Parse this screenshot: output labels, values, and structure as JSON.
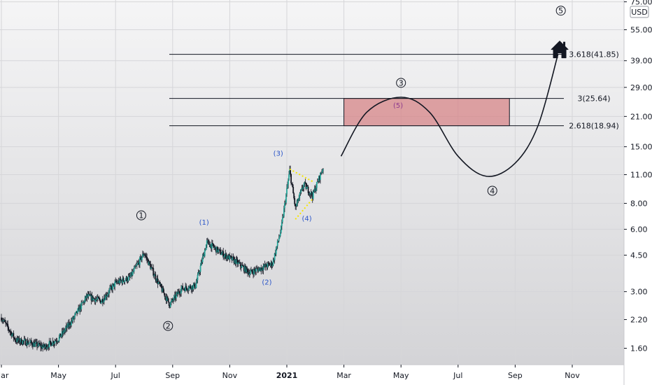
{
  "chart_data": {
    "type": "candlestick",
    "currency": "USD",
    "price_scale": "log",
    "y_ticks": [
      "75.00",
      "55.00",
      "39.00",
      "29.00",
      "21.00",
      "15.00",
      "11.00",
      "8.00",
      "6.00",
      "4.50",
      "3.00",
      "2.20",
      "1.60"
    ],
    "x_ticks": [
      "Mar",
      "May",
      "Jul",
      "Sep",
      "Nov",
      "2021",
      "Mar",
      "May",
      "Jul",
      "Sep",
      "Nov"
    ],
    "fib_levels": [
      {
        "label": "3.618(41.85)",
        "value": 41.85
      },
      {
        "label": "3(25.64)",
        "value": 25.64
      },
      {
        "label": "2.618(18.94)",
        "value": 18.94
      }
    ],
    "price_path": [
      {
        "x": 0,
        "y": 2.25
      },
      {
        "x": 0.25,
        "y": 1.75
      },
      {
        "x": 0.5,
        "y": 1.7
      },
      {
        "x": 0.75,
        "y": 1.62
      },
      {
        "x": 1.0,
        "y": 1.78
      },
      {
        "x": 1.25,
        "y": 2.2
      },
      {
        "x": 1.5,
        "y": 2.85
      },
      {
        "x": 1.75,
        "y": 2.7
      },
      {
        "x": 2.0,
        "y": 3.3
      },
      {
        "x": 2.25,
        "y": 3.5
      },
      {
        "x": 2.5,
        "y": 4.6
      },
      {
        "x": 2.75,
        "y": 3.3
      },
      {
        "x": 2.95,
        "y": 2.6
      },
      {
        "x": 3.15,
        "y": 3.1
      },
      {
        "x": 3.4,
        "y": 3.2
      },
      {
        "x": 3.6,
        "y": 5.2
      },
      {
        "x": 3.85,
        "y": 4.6
      },
      {
        "x": 4.1,
        "y": 4.2
      },
      {
        "x": 4.35,
        "y": 3.7
      },
      {
        "x": 4.55,
        "y": 3.9
      },
      {
        "x": 4.75,
        "y": 4.1
      },
      {
        "x": 4.9,
        "y": 6.0
      },
      {
        "x": 5.05,
        "y": 11.5
      },
      {
        "x": 5.15,
        "y": 7.6
      },
      {
        "x": 5.3,
        "y": 9.9
      },
      {
        "x": 5.45,
        "y": 8.7
      },
      {
        "x": 5.55,
        "y": 10.3
      },
      {
        "x": 5.65,
        "y": 12.2
      }
    ],
    "triangle": {
      "upper": [
        {
          "x": 5.05,
          "y": 11.7
        },
        {
          "x": 5.45,
          "y": 10.2
        }
      ],
      "lower": [
        {
          "x": 5.15,
          "y": 6.7
        },
        {
          "x": 5.45,
          "y": 8.4
        }
      ]
    },
    "box": {
      "x_start": 6.0,
      "x_end": 8.9,
      "y_low": 18.94,
      "y_high": 25.64
    },
    "projection": [
      {
        "x": 5.95,
        "y": 13.5
      },
      {
        "x": 6.4,
        "y": 22.0
      },
      {
        "x": 7.0,
        "y": 26.0
      },
      {
        "x": 7.5,
        "y": 22.0
      },
      {
        "x": 8.0,
        "y": 13.5
      },
      {
        "x": 8.5,
        "y": 10.8
      },
      {
        "x": 9.0,
        "y": 12.5
      },
      {
        "x": 9.4,
        "y": 18.94
      },
      {
        "x": 9.75,
        "y": 41.85
      }
    ],
    "wave_labels": [
      {
        "text": "1",
        "style": "circle",
        "x": 2.45,
        "y": 7.0
      },
      {
        "text": "2",
        "style": "circle",
        "x": 2.92,
        "y": 2.05
      },
      {
        "text": "3",
        "style": "circle",
        "x": 7.0,
        "y": 30.5
      },
      {
        "text": "4",
        "style": "circle",
        "x": 8.6,
        "y": 9.2
      },
      {
        "text": "5",
        "style": "circle",
        "x": 9.8,
        "y": 68.0
      },
      {
        "text": "(1)",
        "style": "blue",
        "x": 3.55,
        "y": 6.5
      },
      {
        "text": "(2)",
        "style": "blue",
        "x": 4.65,
        "y": 3.35
      },
      {
        "text": "(3)",
        "style": "blue",
        "x": 4.85,
        "y": 14.0
      },
      {
        "text": "(4)",
        "style": "blue",
        "x": 5.35,
        "y": 6.8
      },
      {
        "text": "(5)",
        "style": "purple",
        "x": 6.95,
        "y": 23.8
      }
    ],
    "target_icon": "house-icon",
    "target": {
      "x": 9.78,
      "y": 43.5
    }
  }
}
